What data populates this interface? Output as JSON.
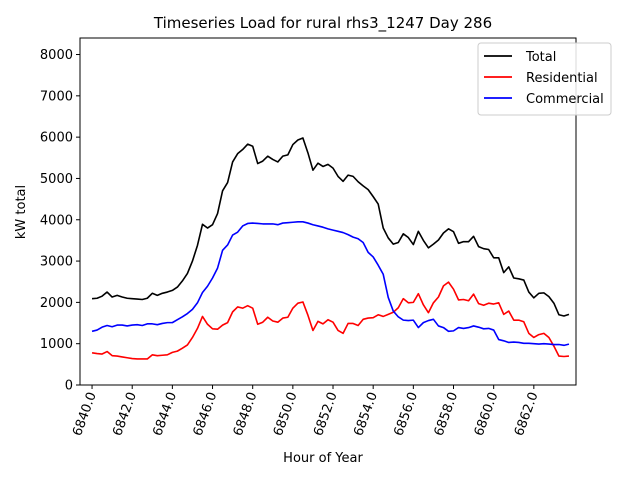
{
  "chart_data": {
    "type": "line",
    "title": "Timeseries Load for rural rhs3_1247  Day 286",
    "xlabel": "Hour of Year",
    "ylabel": "kW total",
    "xlim": [
      6839.4,
      6864.1
    ],
    "ylim": [
      0,
      8400
    ],
    "x_ticks": [
      6840,
      6842,
      6844,
      6846,
      6848,
      6850,
      6852,
      6854,
      6856,
      6858,
      6860,
      6862
    ],
    "x_tick_labels": [
      "6840.0",
      "6842.0",
      "6844.0",
      "6846.0",
      "6848.0",
      "6850.0",
      "6852.0",
      "6854.0",
      "6856.0",
      "6858.0",
      "6860.0",
      "6862.0"
    ],
    "y_ticks": [
      0,
      1000,
      2000,
      3000,
      4000,
      5000,
      6000,
      7000,
      8000
    ],
    "y_tick_labels": [
      "0",
      "1000",
      "2000",
      "3000",
      "4000",
      "5000",
      "6000",
      "7000",
      "8000"
    ],
    "legend_position": "top-right",
    "x_start": 6840,
    "x_step": 0.25,
    "series": [
      {
        "name": "Total",
        "color": "#000000",
        "values": [
          2090,
          2100,
          2150,
          2250,
          2130,
          2170,
          2130,
          2100,
          2090,
          2080,
          2070,
          2100,
          2220,
          2170,
          2220,
          2250,
          2290,
          2370,
          2520,
          2700,
          3000,
          3380,
          3890,
          3800,
          3880,
          4150,
          4700,
          4900,
          5400,
          5600,
          5700,
          5830,
          5780,
          5360,
          5420,
          5540,
          5460,
          5400,
          5540,
          5570,
          5820,
          5930,
          5980,
          5620,
          5200,
          5370,
          5290,
          5340,
          5250,
          5050,
          4930,
          5080,
          5050,
          4920,
          4820,
          4730,
          4560,
          4380,
          3800,
          3560,
          3410,
          3450,
          3660,
          3570,
          3400,
          3720,
          3500,
          3320,
          3410,
          3510,
          3680,
          3780,
          3710,
          3430,
          3470,
          3470,
          3600,
          3350,
          3300,
          3280,
          3080,
          3080,
          2720,
          2860,
          2590,
          2570,
          2540,
          2250,
          2110,
          2220,
          2230,
          2140,
          1980,
          1700,
          1670,
          1710
        ]
      },
      {
        "name": "Residential",
        "color": "#ff0000",
        "values": [
          780,
          760,
          750,
          810,
          710,
          700,
          680,
          660,
          640,
          630,
          630,
          630,
          730,
          710,
          720,
          730,
          790,
          820,
          890,
          970,
          1150,
          1370,
          1660,
          1470,
          1360,
          1350,
          1450,
          1510,
          1770,
          1890,
          1860,
          1920,
          1860,
          1470,
          1520,
          1640,
          1550,
          1520,
          1620,
          1640,
          1860,
          1980,
          2010,
          1690,
          1320,
          1540,
          1480,
          1580,
          1520,
          1320,
          1250,
          1490,
          1490,
          1440,
          1590,
          1620,
          1630,
          1700,
          1660,
          1710,
          1760,
          1870,
          2090,
          1990,
          2000,
          2210,
          1940,
          1750,
          1990,
          2130,
          2400,
          2490,
          2320,
          2060,
          2070,
          2040,
          2200,
          1970,
          1930,
          1980,
          1960,
          1990,
          1710,
          1790,
          1570,
          1570,
          1530,
          1250,
          1150,
          1220,
          1250,
          1150,
          940,
          700,
          690,
          700
        ]
      },
      {
        "name": "Commercial",
        "color": "#0000ff",
        "values": [
          1300,
          1330,
          1400,
          1440,
          1410,
          1450,
          1450,
          1430,
          1450,
          1460,
          1440,
          1480,
          1480,
          1460,
          1490,
          1510,
          1510,
          1580,
          1650,
          1730,
          1830,
          1990,
          2240,
          2390,
          2590,
          2830,
          3260,
          3390,
          3630,
          3700,
          3850,
          3910,
          3920,
          3910,
          3900,
          3900,
          3900,
          3880,
          3920,
          3930,
          3940,
          3950,
          3950,
          3920,
          3880,
          3850,
          3820,
          3780,
          3750,
          3720,
          3690,
          3640,
          3580,
          3540,
          3450,
          3210,
          3100,
          2900,
          2680,
          2120,
          1790,
          1650,
          1570,
          1560,
          1570,
          1390,
          1510,
          1560,
          1590,
          1430,
          1390,
          1300,
          1310,
          1390,
          1370,
          1390,
          1430,
          1400,
          1360,
          1370,
          1330,
          1100,
          1070,
          1030,
          1040,
          1030,
          1010,
          1010,
          1000,
          990,
          1000,
          990,
          980,
          980,
          960,
          990
        ]
      }
    ]
  }
}
